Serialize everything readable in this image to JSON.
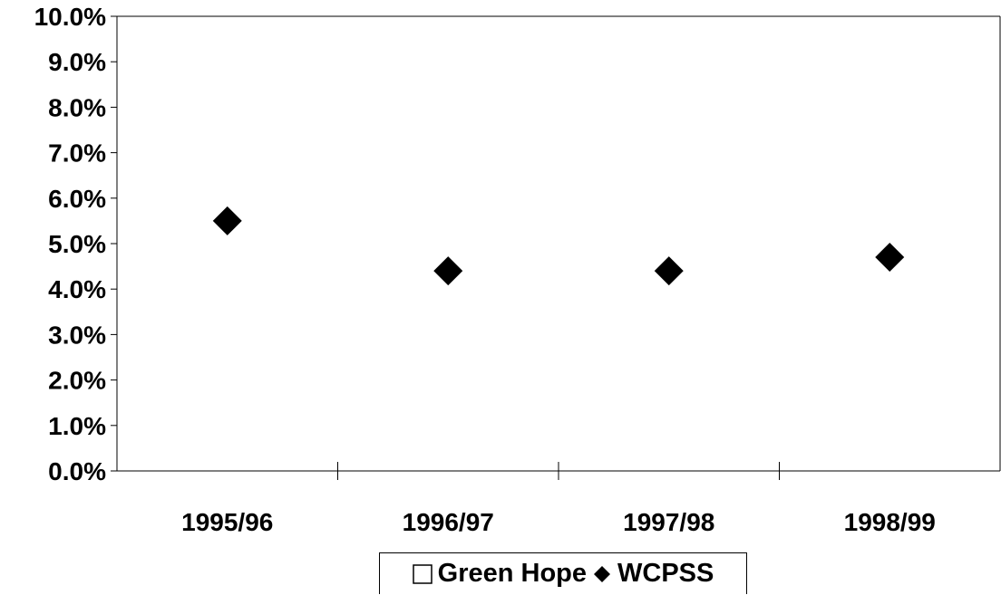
{
  "chart_data": {
    "type": "scatter",
    "categories": [
      "1995/96",
      "1996/97",
      "1997/98",
      "1998/99"
    ],
    "series": [
      {
        "name": "Green Hope",
        "marker": "hollow-square",
        "values": [
          null,
          null,
          null,
          null
        ]
      },
      {
        "name": "WCPSS",
        "marker": "filled-diamond",
        "values": [
          5.5,
          4.4,
          4.4,
          4.7
        ]
      }
    ],
    "y_ticks": [
      "0.0%",
      "1.0%",
      "2.0%",
      "3.0%",
      "4.0%",
      "5.0%",
      "6.0%",
      "7.0%",
      "8.0%",
      "9.0%",
      "10.0%"
    ],
    "ylim": [
      0,
      10
    ],
    "y_unit": "%",
    "grid": false,
    "legend_position": "bottom",
    "colors": {
      "axis": "#000000",
      "marker": "#000000",
      "background": "#ffffff"
    }
  }
}
